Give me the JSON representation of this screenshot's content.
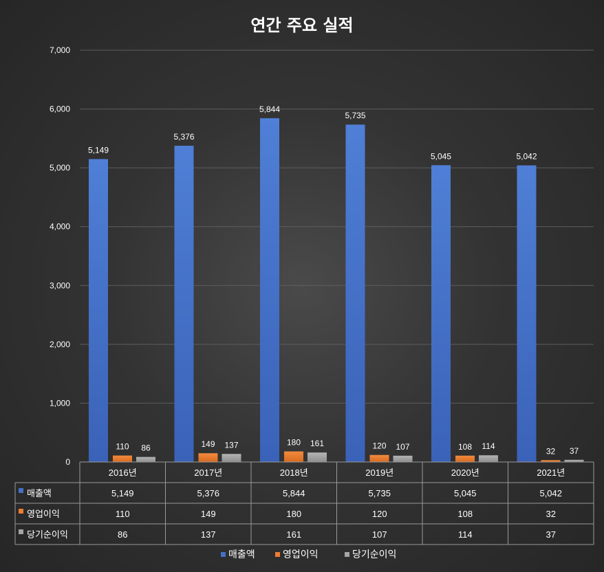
{
  "chart_data": {
    "type": "bar",
    "title": "연간 주요 실적",
    "categories": [
      "2016년",
      "2017년",
      "2018년",
      "2019년",
      "2020년",
      "2021년"
    ],
    "series": [
      {
        "name": "매출액",
        "values": [
          5149,
          5376,
          5844,
          5735,
          5045,
          5042
        ],
        "labels": [
          "5,149",
          "5,376",
          "5,844",
          "5,735",
          "5,045",
          "5,042"
        ],
        "color": "#4472C4"
      },
      {
        "name": "영업이익",
        "values": [
          110,
          149,
          180,
          120,
          108,
          32
        ],
        "labels": [
          "110",
          "149",
          "180",
          "120",
          "108",
          "32"
        ],
        "color": "#ED7D31"
      },
      {
        "name": "당기순이익",
        "values": [
          86,
          137,
          161,
          107,
          114,
          37
        ],
        "labels": [
          "86",
          "137",
          "161",
          "107",
          "114",
          "37"
        ],
        "color": "#A5A5A5"
      }
    ],
    "ylim": [
      0,
      7000
    ],
    "yticks": [
      0,
      1000,
      2000,
      3000,
      4000,
      5000,
      6000,
      7000
    ],
    "ytick_labels": [
      "0",
      "1,000",
      "2,000",
      "3,000",
      "4,000",
      "5,000",
      "6,000",
      "7,000"
    ],
    "grid": true,
    "legend": "bottom",
    "data_table": true
  }
}
